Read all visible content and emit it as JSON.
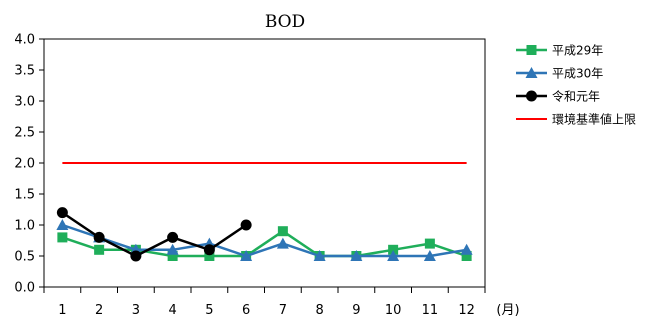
{
  "chart_data": {
    "type": "line",
    "title": "BOD",
    "xlabel": "",
    "ylabel": "",
    "x_unit_label": "(月)",
    "categories": [
      "1",
      "2",
      "3",
      "4",
      "5",
      "6",
      "7",
      "8",
      "9",
      "10",
      "11",
      "12"
    ],
    "ylim": [
      0,
      4
    ],
    "yticks": [
      "0.0",
      "0.5",
      "1.0",
      "1.5",
      "2.0",
      "2.5",
      "3.0",
      "3.5",
      "4.0"
    ],
    "grid": false,
    "legend_position": "right",
    "series": [
      {
        "name": "平成29年",
        "color": "#1fae5a",
        "marker": "square",
        "values": [
          0.8,
          0.6,
          0.6,
          0.5,
          0.5,
          0.5,
          0.9,
          0.5,
          0.5,
          0.6,
          0.7,
          0.5
        ]
      },
      {
        "name": "平成30年",
        "color": "#2e75b6",
        "marker": "triangle",
        "values": [
          1.0,
          0.8,
          0.6,
          0.6,
          0.7,
          0.5,
          0.7,
          0.5,
          0.5,
          0.5,
          0.5,
          0.6
        ]
      },
      {
        "name": "令和元年",
        "color": "#000000",
        "marker": "circle",
        "values": [
          1.2,
          0.8,
          0.5,
          0.8,
          0.6,
          1.0,
          null,
          null,
          null,
          null,
          null,
          null
        ]
      },
      {
        "name": "環境基準値上限",
        "color": "#ff0000",
        "marker": "none",
        "values": [
          2.0,
          2.0,
          2.0,
          2.0,
          2.0,
          2.0,
          2.0,
          2.0,
          2.0,
          2.0,
          2.0,
          2.0
        ]
      }
    ]
  }
}
